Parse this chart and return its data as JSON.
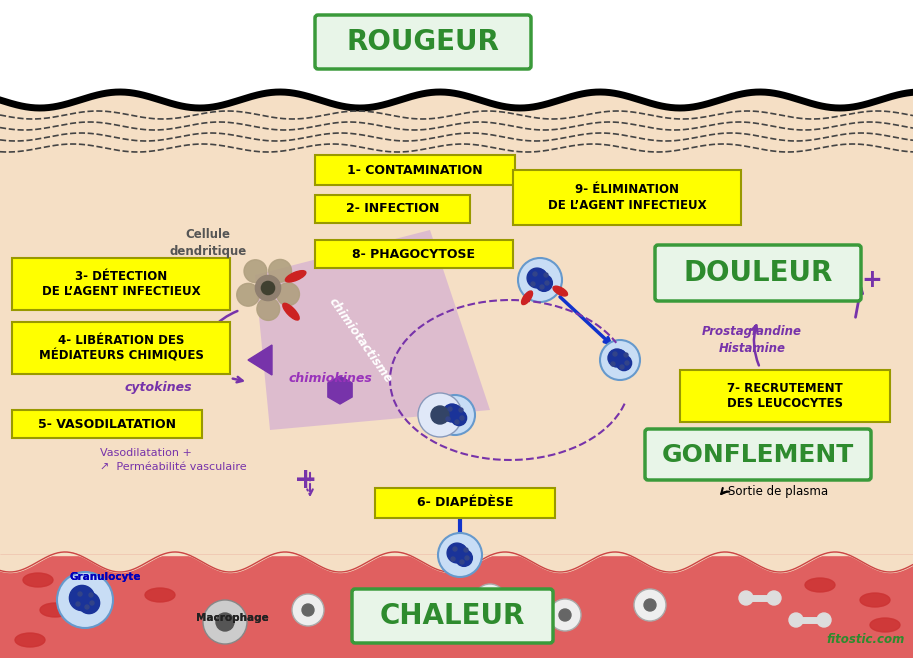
{
  "bg_top_color": "#ffffff",
  "skin_color": "#f5e0c8",
  "blood_color": "#e06060",
  "yellow": "#ffff00",
  "yellow_edge": "#999900",
  "green_face": "#e8f5e8",
  "green_edge": "#3a9a3a",
  "green_text": "#2e8b2e",
  "purple": "#7733aa",
  "purple_dark": "#5a1a8a",
  "blue_arrow": "#1133cc",
  "black": "#000000",
  "white": "#ffffff",
  "gray_cell": "#b0a090",
  "rougeur": "R OUGEUR",
  "rougeur_r": "R",
  "rougeur_rest": "OUGEUR",
  "chaleur_r": "C",
  "chaleur_rest": "HALEUR",
  "douleur_d": "D",
  "douleur_rest": "OULEUR",
  "gonflement_g": "G",
  "gonflement_rest": "ONFLEMENT",
  "label1": "1- CONTAMINATION",
  "label2": "2- INFECTION",
  "label3": "3- DÉTECTION\nDE L’AGENT INFECTIEUX",
  "label4": "4- LIBÉRATION DES\nMÉDIATEURS CHIMIQUES",
  "label5": "5- VASODILATATION",
  "label6": "6- DIAPÉDÈSE",
  "label7": "7- RECRUTEMENT\nDES LEUCOCYTES",
  "label8": "8- PHAGOCYTOSE",
  "label9": "9- ÉLIMINATION\nDE L’AGENT INFECTIEUX",
  "cytokines": "cytokines",
  "chimiokines": "chimiokines",
  "chimiotactisme": "chimiotactisme",
  "cellule": "Cellule\ndendritique",
  "prostaglandine": "Prostaglandine\nHistamine",
  "vasodilatation_note": "Vasodilatation +\n↗  Perméabilité vasculaire",
  "sortie_plasma": "Sortie de plasma",
  "granulocyte": "Granulocyte",
  "macrophage": "Macrophage",
  "fitostic": "fitostic.com"
}
